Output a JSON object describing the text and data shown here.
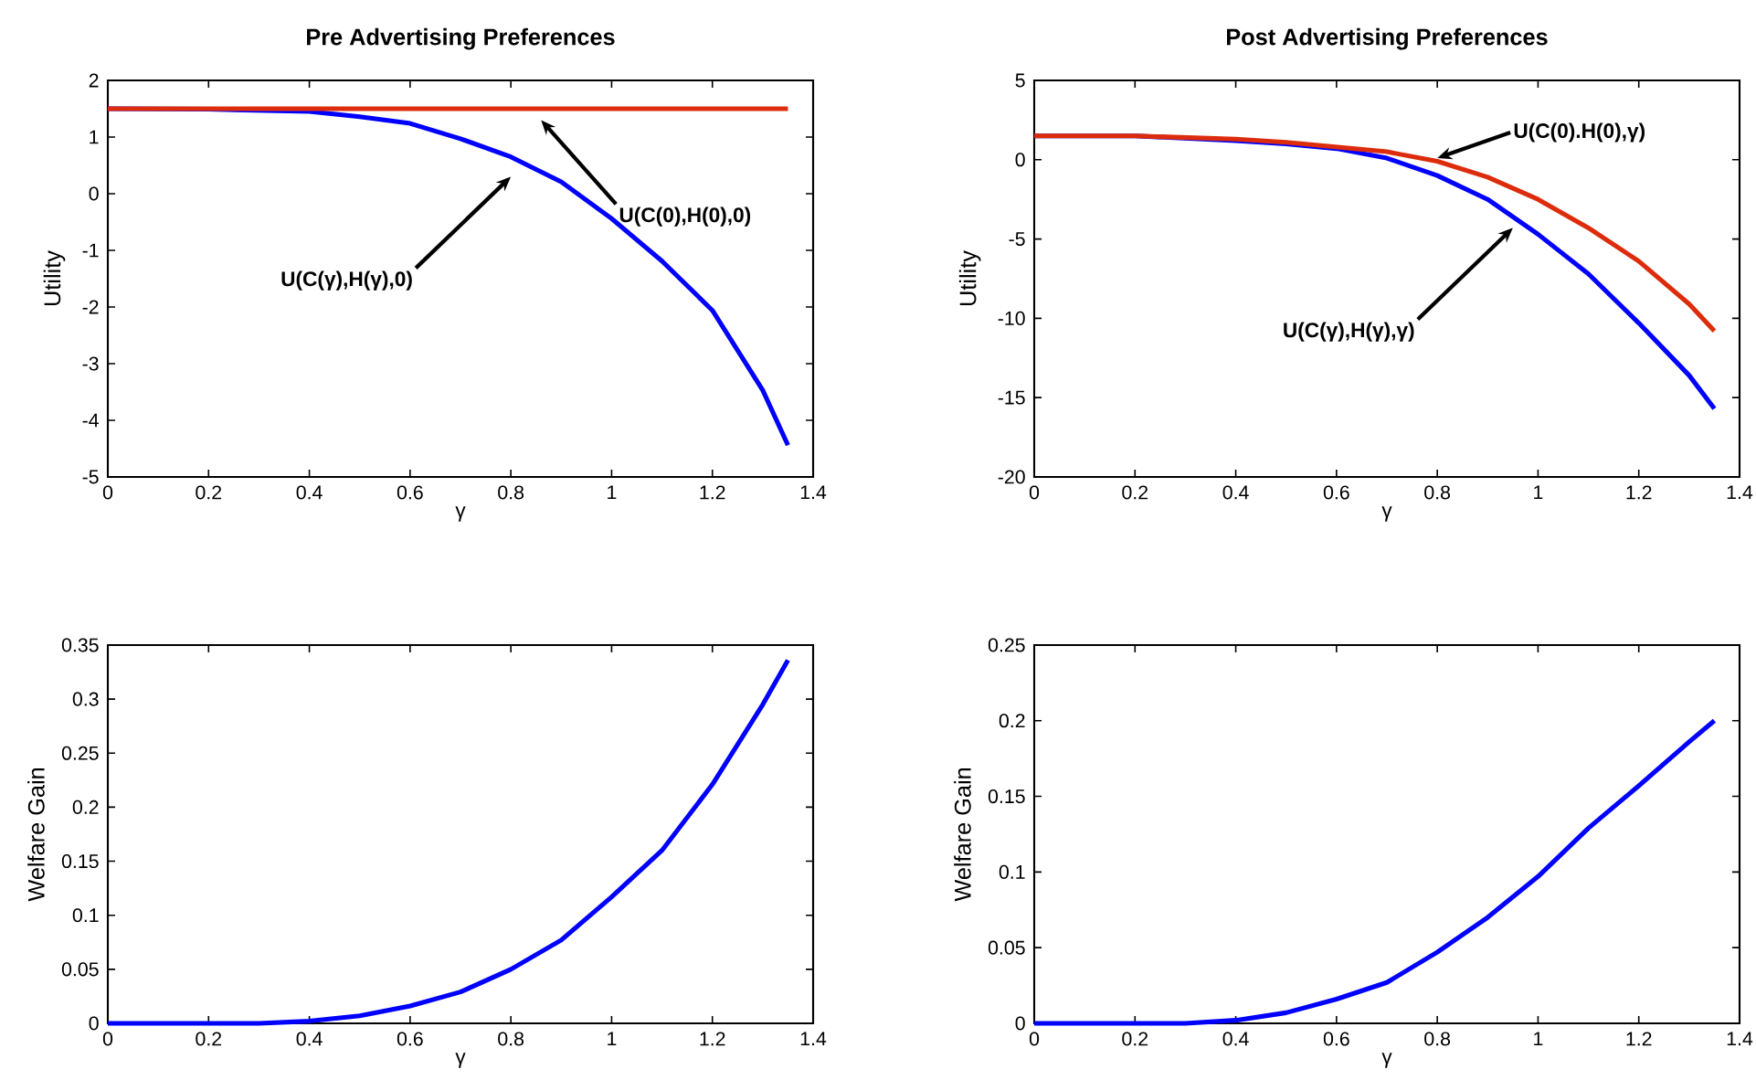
{
  "chart_data": [
    {
      "type": "line",
      "title": "Pre Advertising Preferences",
      "xlabel": "γ",
      "ylabel": "Utility",
      "xlim": [
        0,
        1.4
      ],
      "ylim": [
        -5,
        2
      ],
      "xticks": [
        0,
        0.2,
        0.4,
        0.6,
        0.8,
        1,
        1.2,
        1.4
      ],
      "yticks": [
        -5,
        -4,
        -3,
        -2,
        -1,
        0,
        1,
        2
      ],
      "series": [
        {
          "color": "#0000ff",
          "x": [
            0,
            0.2,
            0.4,
            0.5,
            0.6,
            0.7,
            0.8,
            0.9,
            1.0,
            1.1,
            1.2,
            1.3,
            1.35
          ],
          "values": [
            1.5,
            1.49,
            1.45,
            1.36,
            1.24,
            0.97,
            0.65,
            0.21,
            -0.44,
            -1.19,
            -2.06,
            -3.47,
            -4.44
          ]
        },
        {
          "color": "#dd2c0c",
          "x": [
            0,
            1.35
          ],
          "values": [
            1.5,
            1.5
          ]
        }
      ],
      "annotations": [
        "U(C(0),H(0),0)",
        "U(C(γ),H(γ),0)"
      ]
    },
    {
      "type": "line",
      "title": "Post Advertising Preferences",
      "xlabel": "γ",
      "ylabel": "Utility",
      "xlim": [
        0,
        1.4
      ],
      "ylim": [
        -20,
        5
      ],
      "xticks": [
        0,
        0.2,
        0.4,
        0.6,
        0.8,
        1,
        1.2,
        1.4
      ],
      "yticks": [
        -20,
        -15,
        -10,
        -5,
        0,
        5
      ],
      "series": [
        {
          "color": "#0000ff",
          "x": [
            0,
            0.2,
            0.4,
            0.5,
            0.6,
            0.7,
            0.8,
            0.9,
            1.0,
            1.1,
            1.2,
            1.3,
            1.35
          ],
          "values": [
            1.5,
            1.5,
            1.2,
            1,
            0.7,
            0.1,
            -1,
            -2.5,
            -4.7,
            -7.2,
            -10.3,
            -13.6,
            -15.7
          ]
        },
        {
          "color": "#dd2c0c",
          "x": [
            0,
            0.2,
            0.4,
            0.5,
            0.6,
            0.7,
            0.8,
            0.9,
            1.0,
            1.1,
            1.2,
            1.3,
            1.35
          ],
          "values": [
            1.5,
            1.5,
            1.3,
            1.1,
            0.8,
            0.5,
            -0.1,
            -1.1,
            -2.5,
            -4.3,
            -6.4,
            -9.1,
            -10.8
          ]
        }
      ],
      "annotations": [
        {
          "text": "U(C(0).H(0),γ)",
          "x": 0.8,
          "y": 0.1
        },
        {
          "text": "U(C(γ),H(γ),γ)",
          "x": 0.95,
          "y": -4.3
        }
      ]
    },
    {
      "type": "line",
      "xlabel": "γ",
      "ylabel": "Welfare Gain",
      "xlim": [
        0,
        1.4
      ],
      "ylim": [
        0,
        0.35
      ],
      "xticks": [
        0,
        0.2,
        0.4,
        0.6,
        0.8,
        1,
        1.2,
        1.4
      ],
      "yticks": [
        0,
        0.05,
        0.1,
        0.15,
        0.2,
        0.25,
        0.3,
        0.35
      ],
      "series": [
        {
          "color": "#0000ff",
          "x": [
            0,
            0.2,
            0.3,
            0.4,
            0.5,
            0.6,
            0.7,
            0.8,
            0.9,
            1.0,
            1.1,
            1.2,
            1.3,
            1.35
          ],
          "values": [
            0,
            0,
            0,
            0.002,
            0.007,
            0.016,
            0.029,
            0.05,
            0.077,
            0.117,
            0.16,
            0.221,
            0.295,
            0.336
          ]
        }
      ]
    },
    {
      "type": "line",
      "xlabel": "γ",
      "ylabel": "Welfare Gain",
      "xlim": [
        0,
        1.4
      ],
      "ylim": [
        0,
        0.25
      ],
      "xticks": [
        0,
        0.2,
        0.4,
        0.6,
        0.8,
        1,
        1.2,
        1.4
      ],
      "yticks": [
        0,
        0.05,
        0.1,
        0.15,
        0.2,
        0.25
      ],
      "series": [
        {
          "color": "#0000ff",
          "x": [
            0,
            0.2,
            0.3,
            0.4,
            0.5,
            0.6,
            0.7,
            0.8,
            0.9,
            1.0,
            1.1,
            1.2,
            1.3,
            1.35
          ],
          "values": [
            0,
            0,
            0,
            0.002,
            0.007,
            0.016,
            0.027,
            0.047,
            0.07,
            0.097,
            0.129,
            0.157,
            0.186,
            0.2
          ]
        }
      ]
    }
  ]
}
